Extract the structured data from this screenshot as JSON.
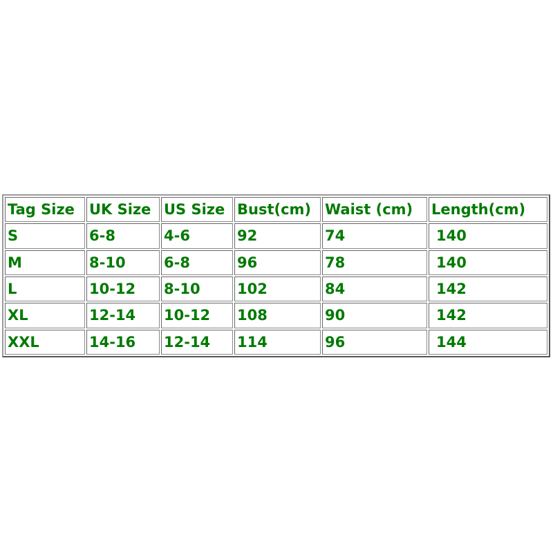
{
  "table": {
    "headers": [
      "Tag Size",
      "UK Size",
      "US Size",
      "Bust(cm)",
      "Waist (cm)",
      "Length(cm)"
    ],
    "rows": [
      [
        "S",
        "6-8",
        "4-6",
        "92",
        "74",
        " 140"
      ],
      [
        "M",
        "8-10",
        "6-8",
        "96",
        "78",
        " 140"
      ],
      [
        "L",
        "10-12",
        "8-10",
        "102",
        "84",
        " 142"
      ],
      [
        "XL",
        "12-14",
        "10-12",
        "108",
        "90",
        " 142"
      ],
      [
        "XXL",
        "14-16",
        "12-14",
        "114",
        "96",
        " 144"
      ]
    ]
  },
  "colors": {
    "text": "#007a00",
    "border": "#888888"
  }
}
